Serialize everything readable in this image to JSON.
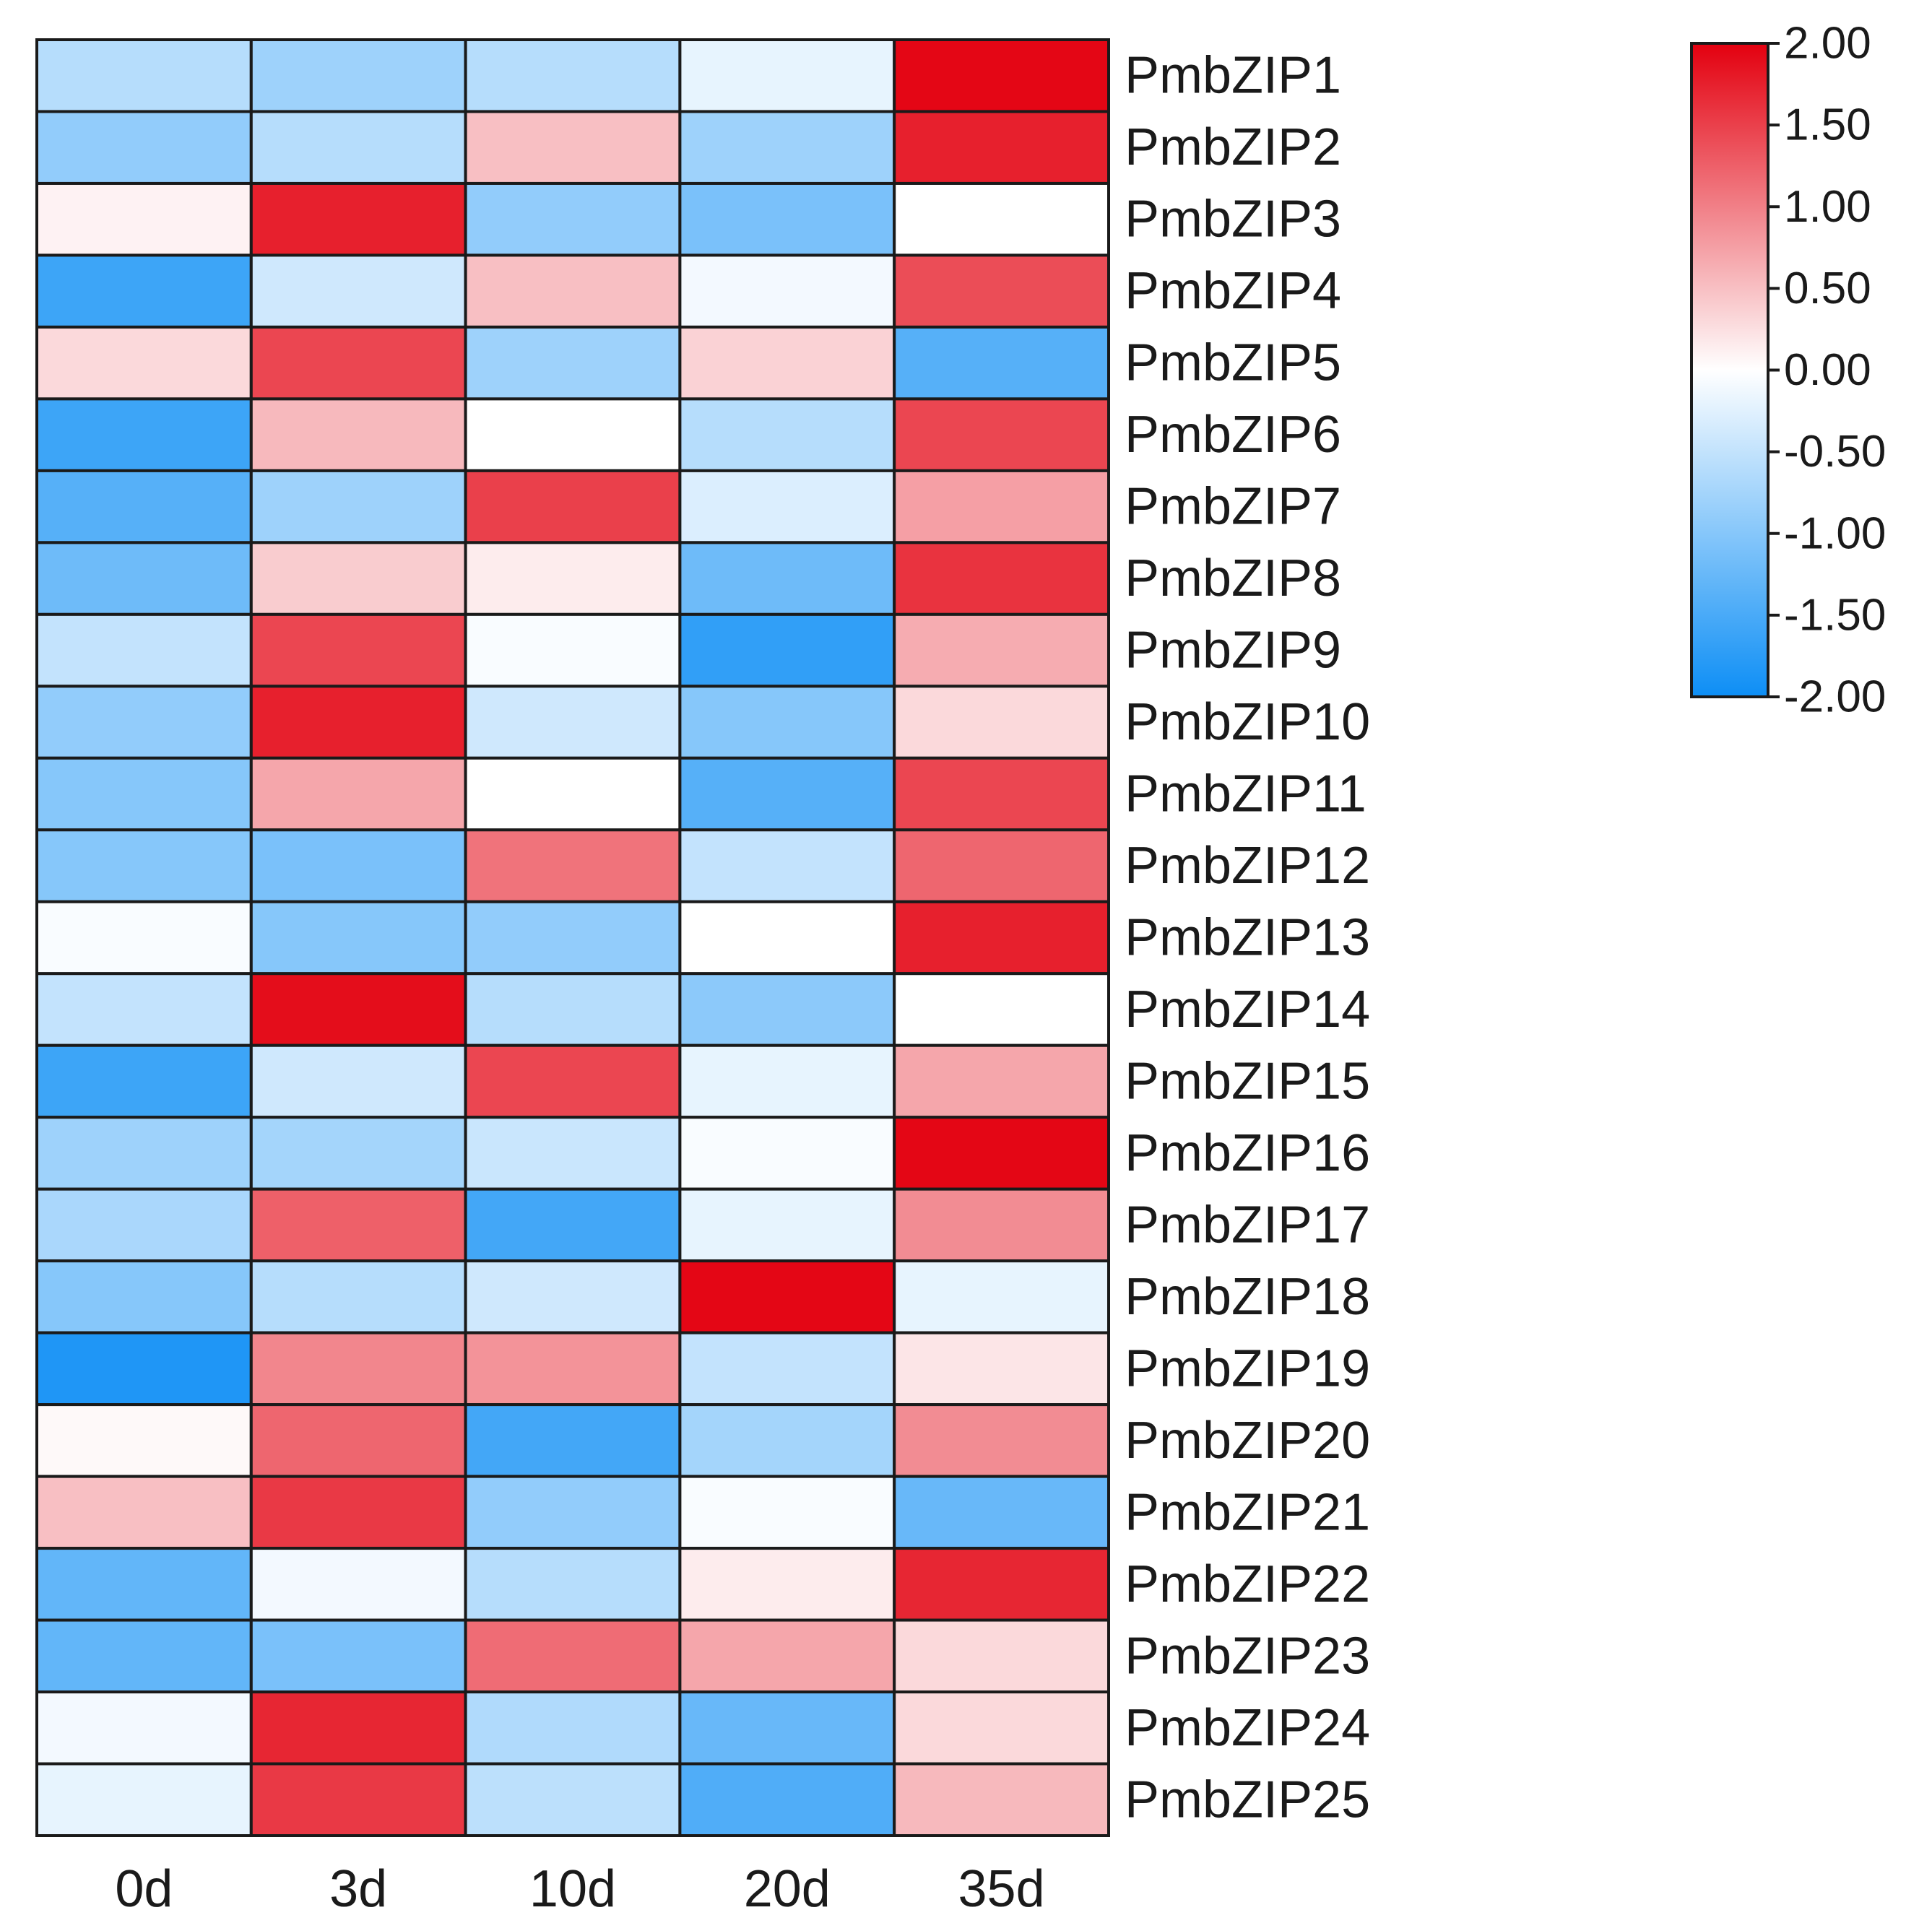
{
  "chart_data": {
    "type": "heatmap",
    "title": "",
    "columns": [
      "0d",
      "3d",
      "10d",
      "20d",
      "35d"
    ],
    "rows": [
      "PmbZIP1",
      "PmbZIP2",
      "PmbZIP3",
      "PmbZIP4",
      "PmbZIP5",
      "PmbZIP6",
      "PmbZIP7",
      "PmbZIP8",
      "PmbZIP9",
      "PmbZIP10",
      "PmbZIP11",
      "PmbZIP12",
      "PmbZIP13",
      "PmbZIP14",
      "PmbZIP15",
      "PmbZIP16",
      "PmbZIP17",
      "PmbZIP18",
      "PmbZIP19",
      "PmbZIP20",
      "PmbZIP21",
      "PmbZIP22",
      "PmbZIP23",
      "PmbZIP24",
      "PmbZIP25"
    ],
    "values": [
      [
        -0.6,
        -0.8,
        -0.6,
        -0.2,
        1.95
      ],
      [
        -0.9,
        -0.6,
        0.5,
        -0.8,
        1.75
      ],
      [
        0.1,
        1.75,
        -0.9,
        -1.1,
        0.0
      ],
      [
        -1.6,
        -0.4,
        0.5,
        -0.1,
        1.4
      ],
      [
        0.3,
        1.45,
        -0.8,
        0.35,
        -1.4
      ],
      [
        -1.6,
        0.55,
        0.0,
        -0.6,
        1.45
      ],
      [
        -1.4,
        -0.8,
        1.5,
        -0.3,
        0.75
      ],
      [
        -1.2,
        0.4,
        0.15,
        -1.2,
        1.6
      ],
      [
        -0.5,
        1.45,
        -0.05,
        -1.7,
        0.65
      ],
      [
        -0.9,
        1.75,
        -0.4,
        -1.0,
        0.3
      ],
      [
        -1.0,
        0.7,
        0.0,
        -1.4,
        1.45
      ],
      [
        -1.0,
        -1.1,
        1.1,
        -0.5,
        1.2
      ],
      [
        -0.05,
        -1.0,
        -0.9,
        0.0,
        1.75
      ],
      [
        -0.5,
        1.9,
        -0.6,
        -0.95,
        0.0
      ],
      [
        -1.6,
        -0.4,
        1.45,
        -0.2,
        0.7
      ],
      [
        -0.8,
        -0.75,
        -0.45,
        -0.05,
        1.95
      ],
      [
        -0.7,
        1.25,
        -1.55,
        -0.2,
        0.9
      ],
      [
        -1.0,
        -0.6,
        -0.4,
        1.95,
        -0.2
      ],
      [
        -1.85,
        0.95,
        0.85,
        -0.5,
        0.2
      ],
      [
        0.05,
        1.2,
        -1.55,
        -0.75,
        0.9
      ],
      [
        0.5,
        1.55,
        -0.9,
        -0.05,
        -1.25
      ],
      [
        -1.3,
        -0.1,
        -0.6,
        0.15,
        1.7
      ],
      [
        -1.3,
        -1.1,
        1.15,
        0.7,
        0.3
      ],
      [
        -0.1,
        1.7,
        -0.65,
        -1.25,
        0.3
      ],
      [
        -0.2,
        1.55,
        -0.55,
        -1.45,
        0.55
      ]
    ],
    "colorbar": {
      "min": -2.0,
      "max": 2.0,
      "ticks": [
        "2.00",
        "1.50",
        "1.00",
        "0.50",
        "0.00",
        "-0.50",
        "-1.00",
        "-1.50",
        "-2.00"
      ],
      "low_color": "#0d8ef5",
      "mid_color": "#ffffff",
      "high_color": "#e3000f"
    },
    "legend_placement": "top-right"
  }
}
